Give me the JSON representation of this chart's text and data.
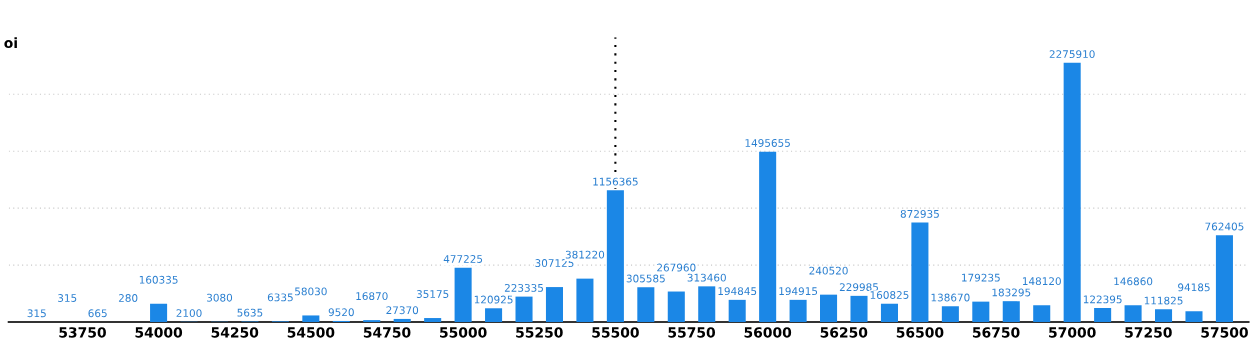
{
  "chart_data": {
    "type": "bar",
    "ylabel": "oi",
    "x": [
      53600,
      53700,
      53800,
      53900,
      54000,
      54100,
      54200,
      54300,
      54400,
      54500,
      54600,
      54700,
      54800,
      54900,
      55000,
      55100,
      55200,
      55300,
      55400,
      55500,
      55600,
      55700,
      55800,
      55900,
      56000,
      56100,
      56200,
      56300,
      56400,
      56500,
      56600,
      56700,
      56800,
      56900,
      57000,
      57100,
      57200,
      57300,
      57400,
      57500
    ],
    "values": [
      315,
      315,
      665,
      280,
      160335,
      2100,
      3080,
      5635,
      6335,
      58030,
      9520,
      16870,
      27370,
      35175,
      477225,
      120925,
      223335,
      307125,
      381220,
      1156365,
      305585,
      267960,
      313460,
      194845,
      1495655,
      194915,
      240520,
      229985,
      160825,
      872935,
      138670,
      179235,
      183295,
      148120,
      2275910,
      122395,
      146860,
      111825,
      94185,
      762405
    ],
    "color": "#1b87e6",
    "data_labels": true,
    "xlim": [
      53508,
      57579
    ],
    "xticks": [
      53750,
      54000,
      54250,
      54500,
      54750,
      55000,
      55250,
      55500,
      55750,
      56000,
      56250,
      56500,
      56750,
      57000,
      57250,
      57500
    ],
    "ylim": [
      0,
      2500000
    ],
    "yticks": [
      {
        "value": 500000,
        "label": null
      },
      {
        "value": 1000000,
        "label": null
      },
      {
        "value": 1500000,
        "label": null
      },
      {
        "value": 2000000,
        "label": null
      }
    ],
    "tick_labels": "x",
    "grid": "y",
    "ref_lines": [
      {
        "axis": "x",
        "value": 55500,
        "label": null,
        "color": "#000000",
        "line_style": "dotted"
      }
    ]
  }
}
